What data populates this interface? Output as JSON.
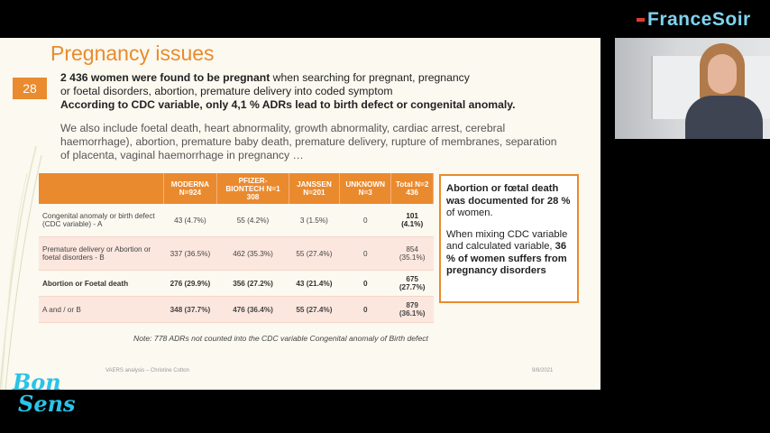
{
  "brand": {
    "logo_text": "FranceSoir",
    "accent": "#e23b2e",
    "color": "#7fd3ee"
  },
  "slide": {
    "title": "Pregnancy issues",
    "page_number": "28",
    "intro": {
      "bold1": "2 436 women were found to be pregnant",
      "rest1": " when searching for pregnant, pregnancy",
      "line2": "or foetal disorders, abortion, premature delivery into coded symptom",
      "bold2": "According to CDC variable, only 4,1 % ADRs lead to birth defect or congenital anomaly."
    },
    "para2": "We also include foetal death, heart abnormality, growth abnormality, cardiac arrest, cerebral haemorrhage), abortion, premature baby death, premature delivery, rupture of membranes, separation of placenta, vaginal haemorrhage in pregnancy …",
    "table": {
      "headers": [
        "",
        "MODERNA N=924",
        "PFIZER-BIONTECH N=1 308",
        "JANSSEN N=201",
        "UNKNOWN N=3",
        "Total N=2 436"
      ],
      "rows": [
        [
          "Congenital anomaly or birth defect (CDC variable) - A",
          "43 (4.7%)",
          "55 (4.2%)",
          "3 (1.5%)",
          "0",
          "101 (4.1%)"
        ],
        [
          "Premature delivery or Abortion or foetal disorders - B",
          "337 (36.5%)",
          "462 (35.3%)",
          "55 (27.4%)",
          "0",
          "854 (35.1%)"
        ],
        [
          "Abortion or Foetal death",
          "276 (29.9%)",
          "356 (27.2%)",
          "43 (21.4%)",
          "0",
          "675 (27.7%)"
        ],
        [
          "A and / or B",
          "348 (37.7%)",
          "476 (36.4%)",
          "55 (27.4%)",
          "0",
          "879 (36.1%)"
        ]
      ]
    },
    "callout": {
      "p1_bold": "Abortion or fœtal death was documented for 28 %",
      "p1_rest": " of women.",
      "p2_start": "When mixing CDC variable and calculated variable,",
      "p2_bold": "36 % of women suffers from pregnancy disorders"
    },
    "note": "Note: 778 ADRs not counted into the CDC variable Congenital anomaly of Birth defect",
    "footer_left": "VAERS analysis – Christine Cotton",
    "footer_right": "9/8/2021",
    "accent_color": "#e98b2e"
  },
  "overlay": {
    "bonsens_line1": "Bon",
    "bonsens_line2": "Sens"
  }
}
